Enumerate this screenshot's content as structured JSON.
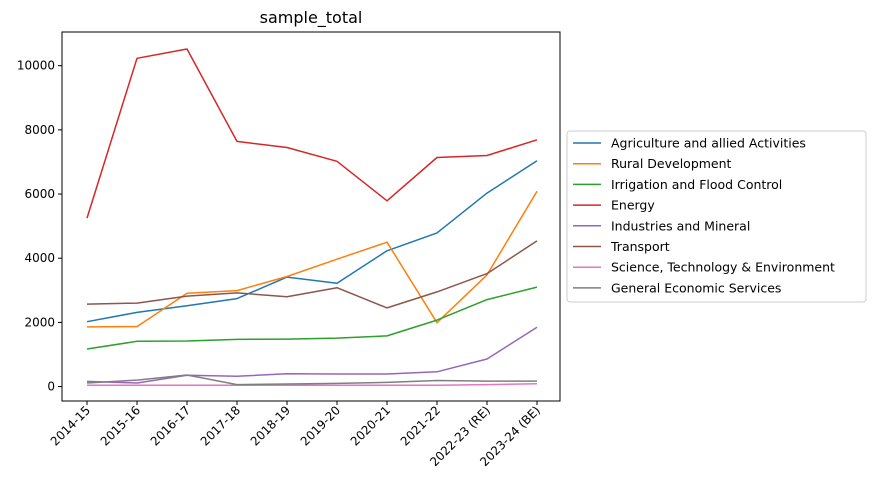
{
  "chart_data": {
    "type": "line",
    "title": "sample_total",
    "xlabel": "",
    "ylabel": "",
    "categories": [
      "2014-15",
      "2015-16",
      "2016-17",
      "2017-18",
      "2018-19",
      "2019-20",
      "2020-21",
      "2021-22",
      "2022-23 (RE)",
      "2023-24 (BE)"
    ],
    "ylim": [
      -450,
      11050
    ],
    "yticks": [
      0,
      2000,
      4000,
      6000,
      8000,
      10000
    ],
    "grid": false,
    "legend": "outside-right",
    "series": [
      {
        "name": "Agriculture and allied Activities",
        "color": "#1f77b4",
        "values": [
          2020,
          2310,
          2520,
          2740,
          3410,
          3220,
          4230,
          4790,
          6030,
          7040
        ]
      },
      {
        "name": "Rural Development",
        "color": "#ff7f0e",
        "values": [
          1860,
          1870,
          2910,
          2990,
          3430,
          3970,
          4500,
          1990,
          3480,
          6090
        ]
      },
      {
        "name": "Irrigation and Flood Control",
        "color": "#2ca02c",
        "values": [
          1170,
          1410,
          1420,
          1470,
          1480,
          1510,
          1580,
          2070,
          2710,
          3100
        ]
      },
      {
        "name": "Energy",
        "color": "#d62728",
        "values": [
          5250,
          10230,
          10520,
          7640,
          7450,
          7020,
          5790,
          7140,
          7200,
          7690
        ]
      },
      {
        "name": "Industries and Mineral",
        "color": "#9467bd",
        "values": [
          160,
          110,
          350,
          320,
          400,
          390,
          390,
          460,
          860,
          1850
        ]
      },
      {
        "name": "Transport",
        "color": "#8c564b",
        "values": [
          2570,
          2600,
          2820,
          2920,
          2800,
          3080,
          2450,
          2950,
          3520,
          4540
        ]
      },
      {
        "name": "Science, Technology & Environment",
        "color": "#e377c2",
        "values": [
          40,
          40,
          40,
          40,
          40,
          40,
          40,
          40,
          60,
          90
        ]
      },
      {
        "name": "General Economic Services",
        "color": "#7f7f7f",
        "values": [
          110,
          200,
          360,
          60,
          80,
          100,
          130,
          190,
          170,
          170
        ]
      }
    ]
  }
}
